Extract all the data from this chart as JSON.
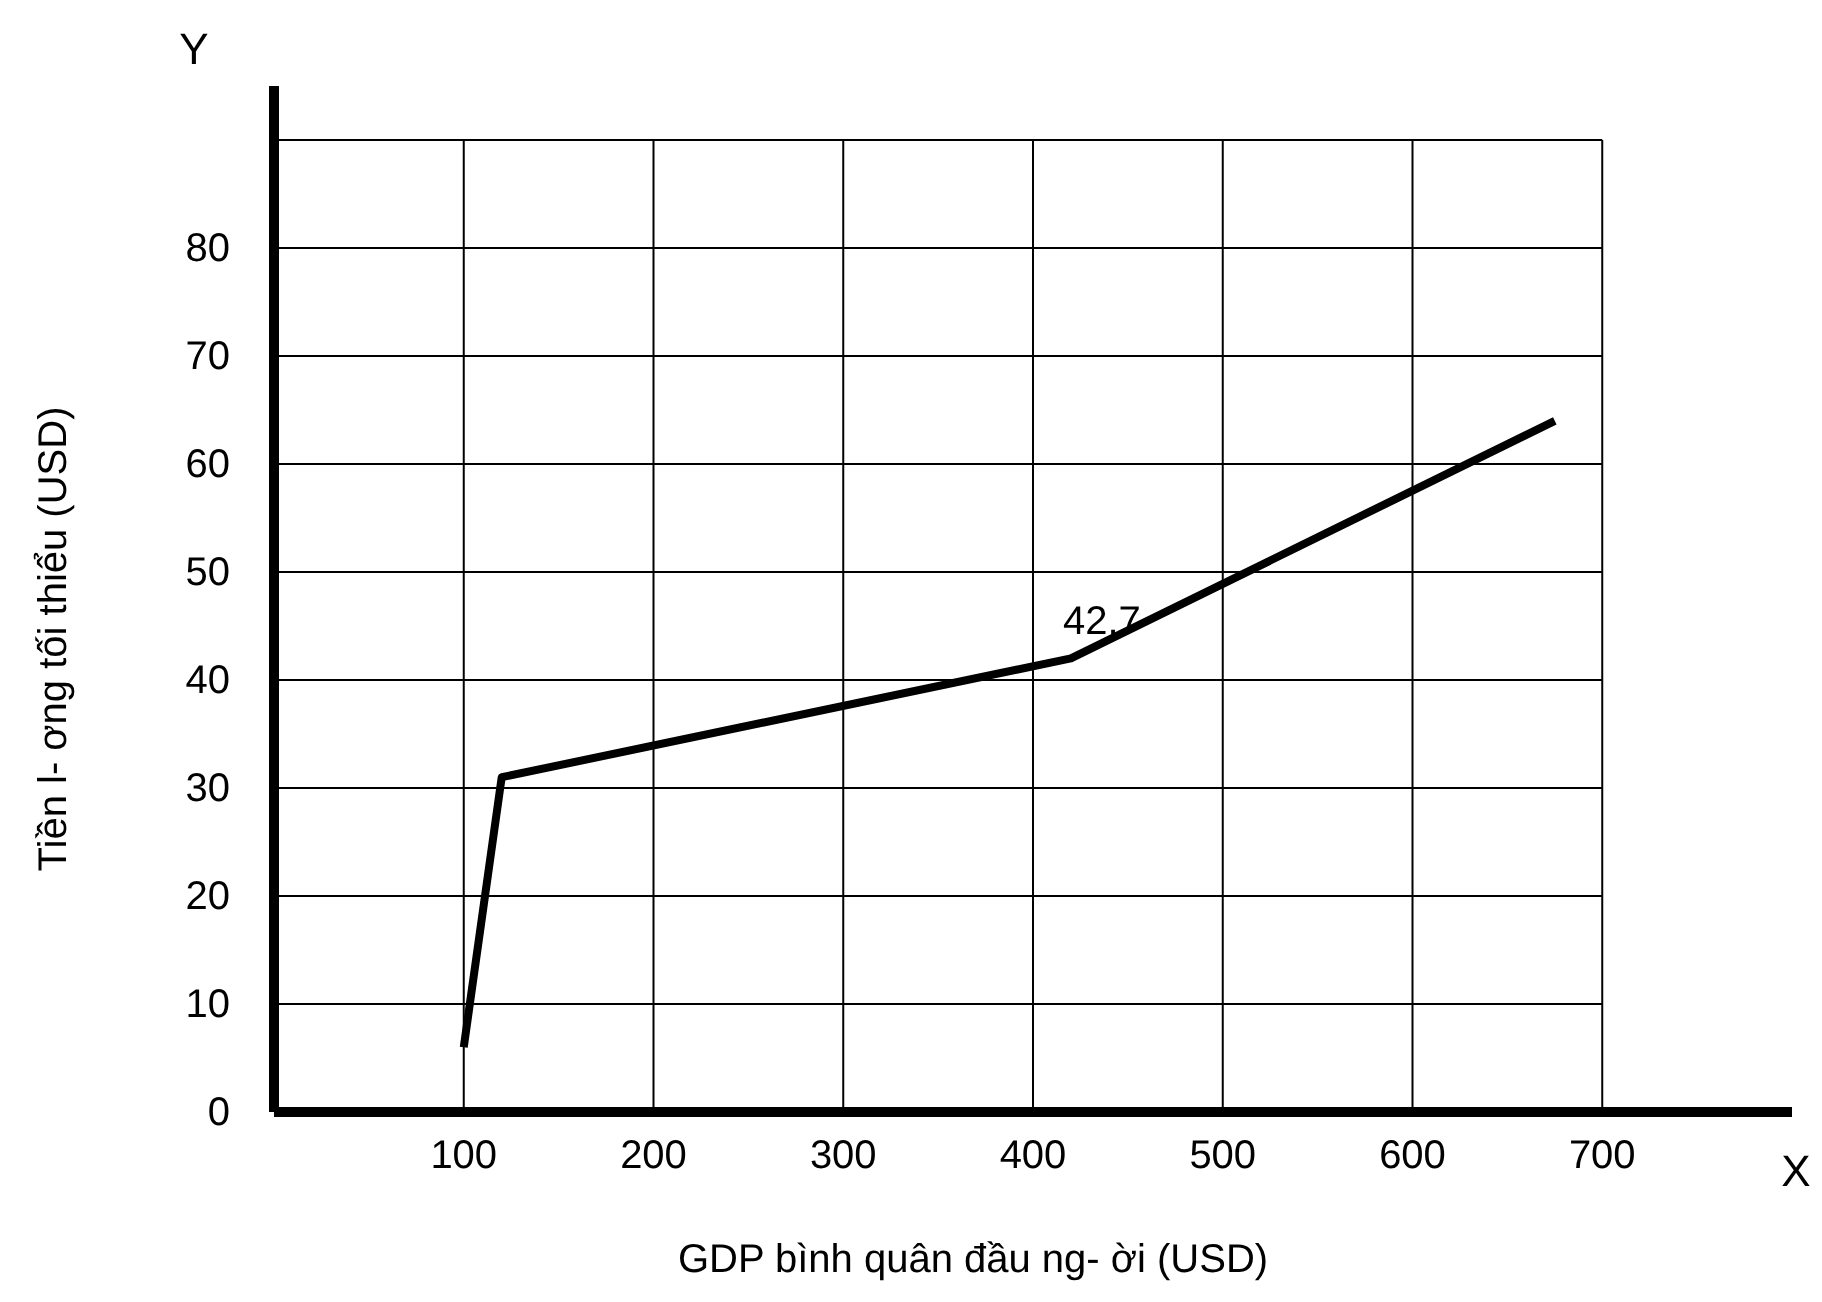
{
  "chart_data": {
    "type": "line",
    "xlabel": "GDP bình quân đầu ng- ời  (USD)",
    "ylabel": "Tiền l- ơng tối thiểu (USD)",
    "x": [
      100,
      120,
      420,
      675
    ],
    "series": [
      {
        "color": "#000000",
        "values": [
          6,
          31,
          42,
          64
        ]
      }
    ],
    "xlim": [
      0,
      800
    ],
    "xticks": [
      100,
      200,
      300,
      400,
      500,
      600,
      700
    ],
    "ylim": [
      0,
      95
    ],
    "yticks": [
      0,
      10,
      20,
      30,
      40,
      50,
      60,
      70,
      80,
      {
        "value": 90,
        "label": null
      }
    ],
    "grid": true,
    "marker": "none",
    "line_style": "solid",
    "annotations": [
      "X",
      "Y",
      {
        "text": "42.7",
        "x": 420,
        "y": 42
      }
    ]
  }
}
